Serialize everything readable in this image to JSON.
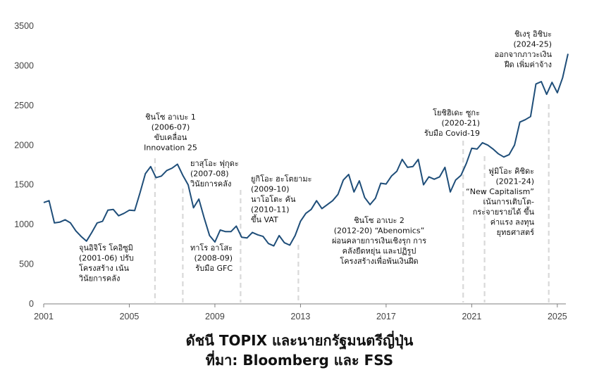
{
  "chart_data": {
    "type": "line",
    "title": "ดัชนี TOPIX และนายกรัฐมนตรีญี่ปุ่น",
    "subtitle": "ที่มา: Bloomberg และ FSS",
    "xlim": [
      2001,
      2025.4
    ],
    "ylim": [
      0,
      3500
    ],
    "yticks": [
      0,
      500,
      1000,
      1500,
      2000,
      2500,
      3000,
      3500
    ],
    "xticks": [
      2001,
      2005,
      2009,
      2013,
      2017,
      2021,
      2025
    ],
    "grid": false,
    "line_color": "#1f4e79",
    "marker_color": "#d9d9d9",
    "series": [
      {
        "x": [
          2001.0,
          2001.25,
          2001.5,
          2001.75,
          2002.0,
          2002.25,
          2002.5,
          2002.75,
          2003.0,
          2003.25,
          2003.5,
          2003.75,
          2004.0,
          2004.25,
          2004.5,
          2004.75,
          2005.0,
          2005.25,
          2005.5,
          2005.75,
          2006.0,
          2006.25,
          2006.5,
          2006.75,
          2007.0,
          2007.25,
          2007.5,
          2007.75,
          2008.0,
          2008.25,
          2008.5,
          2008.75,
          2009.0,
          2009.25,
          2009.5,
          2009.75,
          2010.0,
          2010.25,
          2010.5,
          2010.75,
          2011.0,
          2011.25,
          2011.5,
          2011.75,
          2012.0,
          2012.25,
          2012.5,
          2012.75,
          2013.0,
          2013.25,
          2013.5,
          2013.75,
          2014.0,
          2014.25,
          2014.5,
          2014.75,
          2015.0,
          2015.25,
          2015.5,
          2015.75,
          2016.0,
          2016.25,
          2016.5,
          2016.75,
          2017.0,
          2017.25,
          2017.5,
          2017.75,
          2018.0,
          2018.25,
          2018.5,
          2018.75,
          2019.0,
          2019.25,
          2019.5,
          2019.75,
          2020.0,
          2020.25,
          2020.5,
          2020.75,
          2021.0,
          2021.25,
          2021.5,
          2021.75,
          2022.0,
          2022.25,
          2022.5,
          2022.75,
          2023.0,
          2023.25,
          2023.5,
          2023.75,
          2024.0,
          2024.25,
          2024.5,
          2024.75,
          2025.0,
          2025.25,
          2025.5
        ],
        "values": [
          1277,
          1300,
          1020,
          1030,
          1060,
          1020,
          920,
          850,
          790,
          900,
          1020,
          1040,
          1180,
          1190,
          1110,
          1140,
          1180,
          1175,
          1400,
          1640,
          1730,
          1590,
          1610,
          1680,
          1710,
          1760,
          1620,
          1500,
          1210,
          1320,
          1080,
          860,
          780,
          930,
          910,
          910,
          980,
          840,
          830,
          900,
          870,
          850,
          760,
          730,
          860,
          770,
          740,
          860,
          1040,
          1140,
          1190,
          1300,
          1200,
          1250,
          1300,
          1380,
          1560,
          1630,
          1410,
          1550,
          1340,
          1250,
          1330,
          1520,
          1510,
          1610,
          1670,
          1820,
          1720,
          1730,
          1820,
          1500,
          1600,
          1570,
          1600,
          1720,
          1410,
          1560,
          1620,
          1770,
          1960,
          1950,
          2030,
          2000,
          1950,
          1890,
          1850,
          1880,
          2000,
          2290,
          2320,
          2360,
          2770,
          2800,
          2640,
          2790,
          2660,
          2850,
          3150
        ]
      }
    ],
    "pm_markers": [
      2006.2,
      2007.5,
      2010.2,
      2012.9,
      2020.6,
      2021.6,
      2024.6
    ],
    "annotations": [
      {
        "lines": [
          "จุนอิจิโร โคอิซูมิ",
          "(2001-06) ปรับ",
          "โครงสร้าง เน้น",
          "วินัยการคลัง"
        ],
        "align": "start"
      },
      {
        "lines": [
          "ชินโซ อาเบะ 1",
          "(2006-07)",
          "ขับเคลื่อน",
          "Innovation 25"
        ],
        "align": "middle"
      },
      {
        "lines": [
          "ยาสุโอะ ฟุกุดะ",
          "(2007-08)",
          "วินัยการคลัง"
        ],
        "align": "start"
      },
      {
        "lines": [
          "ทาโร อาโสะ",
          "(2008-09)",
          "รับมือ GFC"
        ],
        "align": "end"
      },
      {
        "lines": [
          "ยูกิโอะ ฮะโตยามะ",
          "(2009-10)",
          "นาโอโตะ คัน",
          "(2010-11)",
          "ขึ้น VAT"
        ],
        "align": "start"
      },
      {
        "lines": [
          "ชินโซ อาเบะ 2",
          "(2012-20) “Abenomics”",
          "ผ่อนคลายการเงินเชิงรุก การ",
          "คลังยืดหยุ่น และปฏิรูป",
          "โครงสร้างเพื่อพ้นเงินฝืด"
        ],
        "align": "middle"
      },
      {
        "lines": [
          "โยชิฮิเดะ ซูกะ",
          "(2020-21)",
          "รับมือ Covid-19"
        ],
        "align": "end"
      },
      {
        "lines": [
          "ชิเงรุ อิชิบะ",
          "(2024-25)",
          "ออกจากภาวะเงิน",
          "ฝืด เพิ่มค่าจ้าง"
        ],
        "align": "end"
      },
      {
        "lines": [
          "ฟูมิโอะ คิชิดะ",
          "(2021-24)",
          "“New Capitalism”",
          "เน้นการเติบโต-",
          "กระจายรายได้ ขึ้น",
          "ค่าแรง ลงทุน",
          "ยุทธศาสตร์"
        ],
        "align": "end"
      }
    ]
  }
}
